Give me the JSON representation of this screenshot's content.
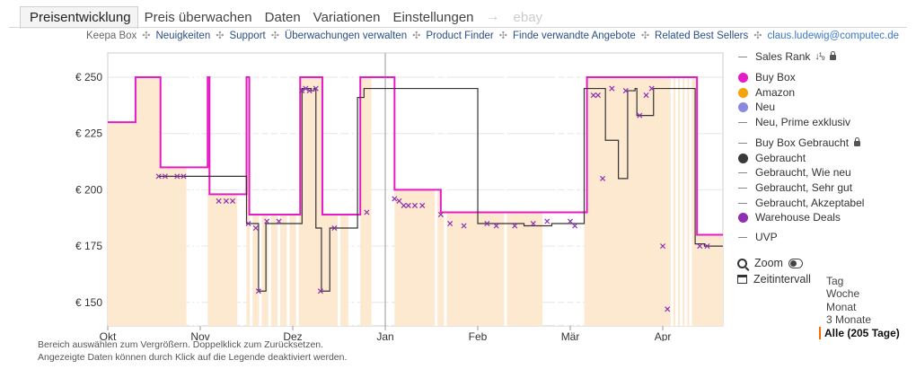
{
  "tabs": [
    {
      "label": "Preisentwicklung",
      "active": true
    },
    {
      "label": "Preis überwachen"
    },
    {
      "label": "Daten"
    },
    {
      "label": "Variationen"
    },
    {
      "label": "Einstellungen"
    },
    {
      "label": "ebay",
      "muted": true
    }
  ],
  "arrow": "→",
  "subnav": {
    "first": "Keepa Box",
    "items": [
      "Neuigkeiten",
      "Support",
      "Überwachungen verwalten",
      "Product Finder",
      "Finde verwandte Angebote",
      "Related Best Sellers"
    ],
    "email": "claus.ludewig@computec.de",
    "sep": "✣"
  },
  "chart_data": {
    "type": "line",
    "y_ticks": [
      "€ 250",
      "€ 225",
      "€ 200",
      "€ 175",
      "€ 150"
    ],
    "y_values": [
      250,
      225,
      200,
      175,
      150
    ],
    "ylim": [
      140,
      260
    ],
    "x_ticks": [
      "Okt",
      "Nov",
      "Dez",
      "Jan",
      "Feb",
      "Mär",
      "Apr"
    ],
    "x_positions_months": [
      0,
      1,
      2,
      3,
      4,
      5,
      6
    ],
    "xlim_months": [
      0,
      6.65
    ],
    "colors": {
      "buybox": "#e51bc6",
      "used": "#333333",
      "warehouse": "#8d2fb0",
      "fill": "#fde8d0",
      "fill_edge": "#f3c9a0"
    },
    "series": [
      {
        "name": "Buy Box",
        "type": "step",
        "values": [
          [
            0,
            230
          ],
          [
            0.3,
            250
          ],
          [
            0.57,
            210
          ],
          [
            0.85,
            210
          ],
          [
            1.08,
            250
          ],
          [
            1.1,
            198
          ],
          [
            1.4,
            198
          ],
          [
            1.5,
            250
          ],
          [
            1.53,
            189
          ],
          [
            2.0,
            189
          ],
          [
            2.08,
            250
          ],
          [
            2.2,
            250
          ],
          [
            2.32,
            189
          ],
          [
            2.6,
            189
          ],
          [
            2.73,
            250
          ],
          [
            2.85,
            250
          ],
          [
            3.1,
            200
          ],
          [
            3.45,
            200
          ],
          [
            3.6,
            190
          ],
          [
            4.7,
            190
          ],
          [
            5.15,
            190
          ],
          [
            5.18,
            250
          ],
          [
            6.0,
            250
          ],
          [
            6.37,
            180
          ],
          [
            6.65,
            180
          ]
        ]
      },
      {
        "name": "Gebraucht",
        "type": "step",
        "values": [
          [
            0.55,
            206
          ],
          [
            0.7,
            206
          ],
          [
            1.5,
            185
          ],
          [
            1.62,
            185
          ],
          [
            1.63,
            155
          ],
          [
            1.7,
            155
          ],
          [
            1.71,
            185
          ],
          [
            2.1,
            245
          ],
          [
            2.2,
            244
          ],
          [
            2.23,
            245
          ],
          [
            2.25,
            183
          ],
          [
            2.3,
            183
          ],
          [
            2.31,
            155
          ],
          [
            2.4,
            183
          ],
          [
            2.7,
            241
          ],
          [
            2.77,
            245
          ],
          [
            4.0,
            185
          ],
          [
            4.5,
            184
          ],
          [
            4.8,
            185
          ],
          [
            5.15,
            245
          ],
          [
            5.35,
            245
          ],
          [
            5.38,
            222
          ],
          [
            5.5,
            222
          ],
          [
            5.52,
            205
          ],
          [
            5.6,
            205
          ],
          [
            5.62,
            244
          ],
          [
            5.7,
            245
          ],
          [
            5.72,
            233
          ],
          [
            5.8,
            233
          ],
          [
            5.9,
            245
          ],
          [
            6.35,
            176
          ],
          [
            6.45,
            175
          ],
          [
            6.65,
            175
          ]
        ]
      },
      {
        "name": "Warehouse Deals",
        "type": "points",
        "values": [
          [
            0.55,
            206
          ],
          [
            0.62,
            206
          ],
          [
            0.75,
            206
          ],
          [
            0.82,
            206
          ],
          [
            1.2,
            195
          ],
          [
            1.28,
            195
          ],
          [
            1.35,
            195
          ],
          [
            1.52,
            185
          ],
          [
            1.6,
            183
          ],
          [
            1.63,
            155
          ],
          [
            1.72,
            186
          ],
          [
            1.85,
            186
          ],
          [
            2.1,
            244
          ],
          [
            2.14,
            245
          ],
          [
            2.18,
            244
          ],
          [
            2.25,
            245
          ],
          [
            2.3,
            155
          ],
          [
            2.45,
            183
          ],
          [
            2.8,
            190
          ],
          [
            3.1,
            196
          ],
          [
            3.15,
            195
          ],
          [
            3.2,
            193
          ],
          [
            3.25,
            193
          ],
          [
            3.32,
            193
          ],
          [
            3.4,
            193
          ],
          [
            3.6,
            189
          ],
          [
            3.7,
            185
          ],
          [
            3.85,
            184
          ],
          [
            4.1,
            185
          ],
          [
            4.2,
            184
          ],
          [
            4.4,
            184
          ],
          [
            4.6,
            185
          ],
          [
            4.75,
            186
          ],
          [
            5.0,
            186
          ],
          [
            5.05,
            184
          ],
          [
            5.25,
            242
          ],
          [
            5.3,
            242
          ],
          [
            5.35,
            205
          ],
          [
            5.45,
            245
          ],
          [
            5.6,
            244
          ],
          [
            5.75,
            233
          ],
          [
            5.82,
            242
          ],
          [
            5.88,
            245
          ],
          [
            6.0,
            175
          ],
          [
            6.05,
            147
          ],
          [
            6.4,
            175
          ],
          [
            6.48,
            175
          ]
        ]
      }
    ]
  },
  "legend": {
    "sales_rank": "Sales Rank",
    "items": [
      {
        "label": "Buy Box",
        "color": "#e51bc6",
        "kind": "dot"
      },
      {
        "label": "Amazon",
        "color": "#f5a30b",
        "kind": "dot"
      },
      {
        "label": "Neu",
        "color": "#8989e0",
        "kind": "dot"
      },
      {
        "label": "Neu, Prime exklusiv",
        "kind": "dash"
      },
      {
        "label": "Buy Box Gebraucht",
        "kind": "dash",
        "lock": true
      },
      {
        "label": "Gebraucht",
        "color": "#3a3a3a",
        "kind": "dot"
      },
      {
        "label": "Gebraucht, Wie neu",
        "kind": "dash"
      },
      {
        "label": "Gebraucht, Sehr gut",
        "kind": "dash"
      },
      {
        "label": "Gebraucht, Akzeptabel",
        "kind": "dash"
      },
      {
        "label": "Warehouse Deals",
        "color": "#8d2fb0",
        "kind": "dot"
      },
      {
        "label": "UVP",
        "kind": "dash"
      }
    ],
    "zoom": "Zoom",
    "zeitintervall": "Zeitintervall",
    "ranges": [
      "Tag",
      "Woche",
      "Monat",
      "3 Monate",
      "Alle (205 Tage)"
    ],
    "selected_range": "Alle (205 Tage)"
  },
  "footer": {
    "line1": "Bereich auswählen zum Vergrößern. Doppelklick zum Zurücksetzen.",
    "line2": "Angezeigte Daten können durch Klick auf die Legende deaktiviert werden."
  }
}
